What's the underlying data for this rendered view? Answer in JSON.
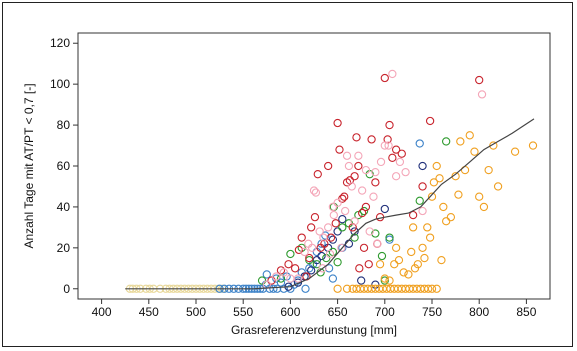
{
  "chart_data": {
    "type": "scatter",
    "xlabel": "Grasreferenzverdunstung [mm]",
    "ylabel": "Anzahl Tage mit AT/PT < 0,7 [-]",
    "xlim": [
      375,
      875
    ],
    "ylim": [
      -5,
      125
    ],
    "x_ticks": [
      400,
      450,
      500,
      550,
      600,
      650,
      700,
      750,
      800,
      850
    ],
    "y_ticks": [
      0,
      20,
      40,
      60,
      80,
      100,
      120
    ],
    "x_tick_labels": [
      "400",
      "450",
      "500",
      "550",
      "600",
      "650",
      "700",
      "750",
      "800",
      "850"
    ],
    "y_tick_labels": [
      "0",
      "20",
      "40",
      "60",
      "80",
      "100",
      "120"
    ],
    "grid": true,
    "marker": "open-circle",
    "colors": {
      "red": "#c8232c",
      "pink": "#f4a6b8",
      "orange": "#f0a020",
      "green": "#2e9a2e",
      "blue": "#3c82c8",
      "navy": "#1f2f7a",
      "yellow": "#e8d89a",
      "curve": "#444444"
    },
    "series": [
      {
        "color_key": "yellow",
        "points": [
          [
            430,
            0
          ],
          [
            433,
            0
          ],
          [
            437,
            0
          ],
          [
            441,
            0
          ],
          [
            447,
            0
          ],
          [
            451,
            0
          ],
          [
            455,
            0
          ],
          [
            462,
            0
          ],
          [
            468,
            0
          ],
          [
            472,
            0
          ],
          [
            476,
            0
          ],
          [
            480,
            0
          ],
          [
            484,
            0
          ],
          [
            488,
            0
          ],
          [
            492,
            0
          ],
          [
            496,
            0
          ],
          [
            500,
            0
          ],
          [
            504,
            0
          ],
          [
            508,
            0
          ],
          [
            512,
            0
          ],
          [
            516,
            0
          ],
          [
            520,
            0
          ],
          [
            524,
            0
          ],
          [
            528,
            0
          ]
        ]
      },
      {
        "color_key": "blue",
        "points": [
          [
            525,
            0
          ],
          [
            530,
            0
          ],
          [
            535,
            0
          ],
          [
            540,
            0
          ],
          [
            545,
            0
          ],
          [
            550,
            0
          ],
          [
            553,
            0
          ],
          [
            556,
            0
          ],
          [
            559,
            0
          ],
          [
            562,
            0
          ],
          [
            565,
            0
          ],
          [
            568,
            0
          ],
          [
            571,
            0
          ],
          [
            574,
            2
          ],
          [
            578,
            0
          ],
          [
            582,
            0
          ],
          [
            586,
            0
          ],
          [
            590,
            3
          ],
          [
            593,
            0
          ],
          [
            596,
            6
          ],
          [
            600,
            0
          ],
          [
            604,
            2
          ],
          [
            608,
            4
          ],
          [
            612,
            8
          ],
          [
            616,
            0
          ],
          [
            620,
            10
          ],
          [
            624,
            12
          ],
          [
            628,
            18
          ],
          [
            633,
            22
          ],
          [
            637,
            26
          ],
          [
            641,
            10
          ],
          [
            645,
            5
          ],
          [
            575,
            7
          ],
          [
            585,
            5
          ],
          [
            705,
            24
          ],
          [
            737,
            71
          ],
          [
            655,
            20
          ]
        ]
      },
      {
        "color_key": "navy",
        "points": [
          [
            598,
            1
          ],
          [
            608,
            3
          ],
          [
            615,
            6
          ],
          [
            622,
            9
          ],
          [
            628,
            14
          ],
          [
            633,
            16
          ],
          [
            640,
            20
          ],
          [
            645,
            24
          ],
          [
            650,
            28
          ],
          [
            655,
            34
          ],
          [
            662,
            22
          ],
          [
            668,
            28
          ],
          [
            675,
            4
          ],
          [
            690,
            2
          ],
          [
            700,
            39
          ],
          [
            740,
            60
          ]
        ]
      },
      {
        "color_key": "green",
        "points": [
          [
            570,
            4
          ],
          [
            590,
            5
          ],
          [
            600,
            17
          ],
          [
            612,
            20
          ],
          [
            620,
            14
          ],
          [
            628,
            12
          ],
          [
            632,
            8
          ],
          [
            638,
            15
          ],
          [
            645,
            18
          ],
          [
            650,
            13
          ],
          [
            655,
            30
          ],
          [
            662,
            32
          ],
          [
            668,
            25
          ],
          [
            672,
            36
          ],
          [
            678,
            38
          ],
          [
            684,
            56
          ],
          [
            690,
            27
          ],
          [
            697,
            16
          ],
          [
            700,
            4
          ],
          [
            705,
            25
          ],
          [
            737,
            43
          ],
          [
            765,
            72
          ],
          [
            646,
            40
          ]
        ]
      },
      {
        "color_key": "red",
        "points": [
          [
            580,
            4
          ],
          [
            590,
            9
          ],
          [
            598,
            12
          ],
          [
            605,
            10
          ],
          [
            609,
            19
          ],
          [
            612,
            25
          ],
          [
            617,
            6
          ],
          [
            620,
            15
          ],
          [
            622,
            30
          ],
          [
            626,
            35
          ],
          [
            629,
            56
          ],
          [
            632,
            20
          ],
          [
            636,
            22
          ],
          [
            640,
            60
          ],
          [
            643,
            25
          ],
          [
            648,
            32
          ],
          [
            650,
            81
          ],
          [
            652,
            68
          ],
          [
            655,
            44
          ],
          [
            657,
            45
          ],
          [
            660,
            52
          ],
          [
            663,
            53
          ],
          [
            666,
            30
          ],
          [
            668,
            55
          ],
          [
            670,
            74
          ],
          [
            672,
            60
          ],
          [
            676,
            37
          ],
          [
            680,
            40
          ],
          [
            683,
            12
          ],
          [
            686,
            73
          ],
          [
            690,
            52
          ],
          [
            695,
            35
          ],
          [
            700,
            103
          ],
          [
            703,
            73
          ],
          [
            705,
            80
          ],
          [
            708,
            64
          ],
          [
            712,
            68
          ],
          [
            718,
            66
          ],
          [
            730,
            36
          ],
          [
            740,
            50
          ],
          [
            748,
            82
          ],
          [
            800,
            102
          ],
          [
            673,
            10
          ],
          [
            678,
            20
          ],
          [
            692,
            22
          ]
        ]
      },
      {
        "color_key": "pink",
        "points": [
          [
            575,
            2
          ],
          [
            585,
            6
          ],
          [
            593,
            8
          ],
          [
            600,
            5
          ],
          [
            608,
            5
          ],
          [
            615,
            18
          ],
          [
            619,
            22
          ],
          [
            623,
            20
          ],
          [
            627,
            47
          ],
          [
            631,
            28
          ],
          [
            635,
            25
          ],
          [
            640,
            30
          ],
          [
            642,
            17
          ],
          [
            646,
            36
          ],
          [
            650,
            42
          ],
          [
            654,
            20
          ],
          [
            658,
            38
          ],
          [
            662,
            60
          ],
          [
            665,
            50
          ],
          [
            668,
            33
          ],
          [
            672,
            65
          ],
          [
            676,
            48
          ],
          [
            680,
            58
          ],
          [
            684,
            28
          ],
          [
            688,
            45
          ],
          [
            692,
            22
          ],
          [
            696,
            62
          ],
          [
            700,
            70
          ],
          [
            704,
            70
          ],
          [
            708,
            105
          ],
          [
            712,
            55
          ],
          [
            716,
            62
          ],
          [
            722,
            57
          ],
          [
            740,
            38
          ],
          [
            803,
            95
          ],
          [
            660,
            65
          ],
          [
            690,
            57
          ],
          [
            645,
            40
          ],
          [
            634,
            10
          ],
          [
            625,
            48
          ]
        ]
      },
      {
        "color_key": "orange",
        "points": [
          [
            650,
            0
          ],
          [
            660,
            0
          ],
          [
            666,
            0
          ],
          [
            670,
            0
          ],
          [
            674,
            0
          ],
          [
            678,
            0
          ],
          [
            682,
            0
          ],
          [
            686,
            0
          ],
          [
            690,
            0
          ],
          [
            694,
            0
          ],
          [
            698,
            0
          ],
          [
            702,
            0
          ],
          [
            706,
            0
          ],
          [
            710,
            0
          ],
          [
            714,
            0
          ],
          [
            718,
            0
          ],
          [
            722,
            0
          ],
          [
            726,
            0
          ],
          [
            730,
            0
          ],
          [
            734,
            0
          ],
          [
            738,
            0
          ],
          [
            742,
            0
          ],
          [
            746,
            0
          ],
          [
            750,
            0
          ],
          [
            755,
            0
          ],
          [
            700,
            5
          ],
          [
            705,
            4
          ],
          [
            710,
            12
          ],
          [
            715,
            14
          ],
          [
            720,
            8
          ],
          [
            725,
            7
          ],
          [
            728,
            18
          ],
          [
            732,
            10
          ],
          [
            735,
            12
          ],
          [
            740,
            20
          ],
          [
            742,
            15
          ],
          [
            745,
            30
          ],
          [
            748,
            25
          ],
          [
            750,
            45
          ],
          [
            752,
            52
          ],
          [
            755,
            60
          ],
          [
            758,
            54
          ],
          [
            762,
            40
          ],
          [
            765,
            33
          ],
          [
            770,
            35
          ],
          [
            775,
            55
          ],
          [
            778,
            46
          ],
          [
            780,
            72
          ],
          [
            785,
            58
          ],
          [
            790,
            75
          ],
          [
            795,
            67
          ],
          [
            800,
            45
          ],
          [
            805,
            40
          ],
          [
            810,
            58
          ],
          [
            815,
            70
          ],
          [
            820,
            50
          ],
          [
            838,
            67
          ],
          [
            857,
            70
          ],
          [
            695,
            12
          ],
          [
            712,
            20
          ],
          [
            730,
            30
          ],
          [
            760,
            14
          ]
        ]
      }
    ],
    "trend_line": {
      "color_key": "curve",
      "points": [
        [
          425,
          0
        ],
        [
          560,
          0
        ],
        [
          600,
          1
        ],
        [
          620,
          5
        ],
        [
          640,
          12
        ],
        [
          655,
          20
        ],
        [
          668,
          27
        ],
        [
          680,
          32
        ],
        [
          690,
          34
        ],
        [
          700,
          35
        ],
        [
          712,
          36
        ],
        [
          725,
          37
        ],
        [
          738,
          40
        ],
        [
          748,
          45
        ],
        [
          760,
          51
        ],
        [
          775,
          56
        ],
        [
          790,
          62
        ],
        [
          805,
          68
        ],
        [
          820,
          72
        ],
        [
          835,
          76
        ],
        [
          848,
          80
        ],
        [
          858,
          83
        ]
      ]
    }
  }
}
